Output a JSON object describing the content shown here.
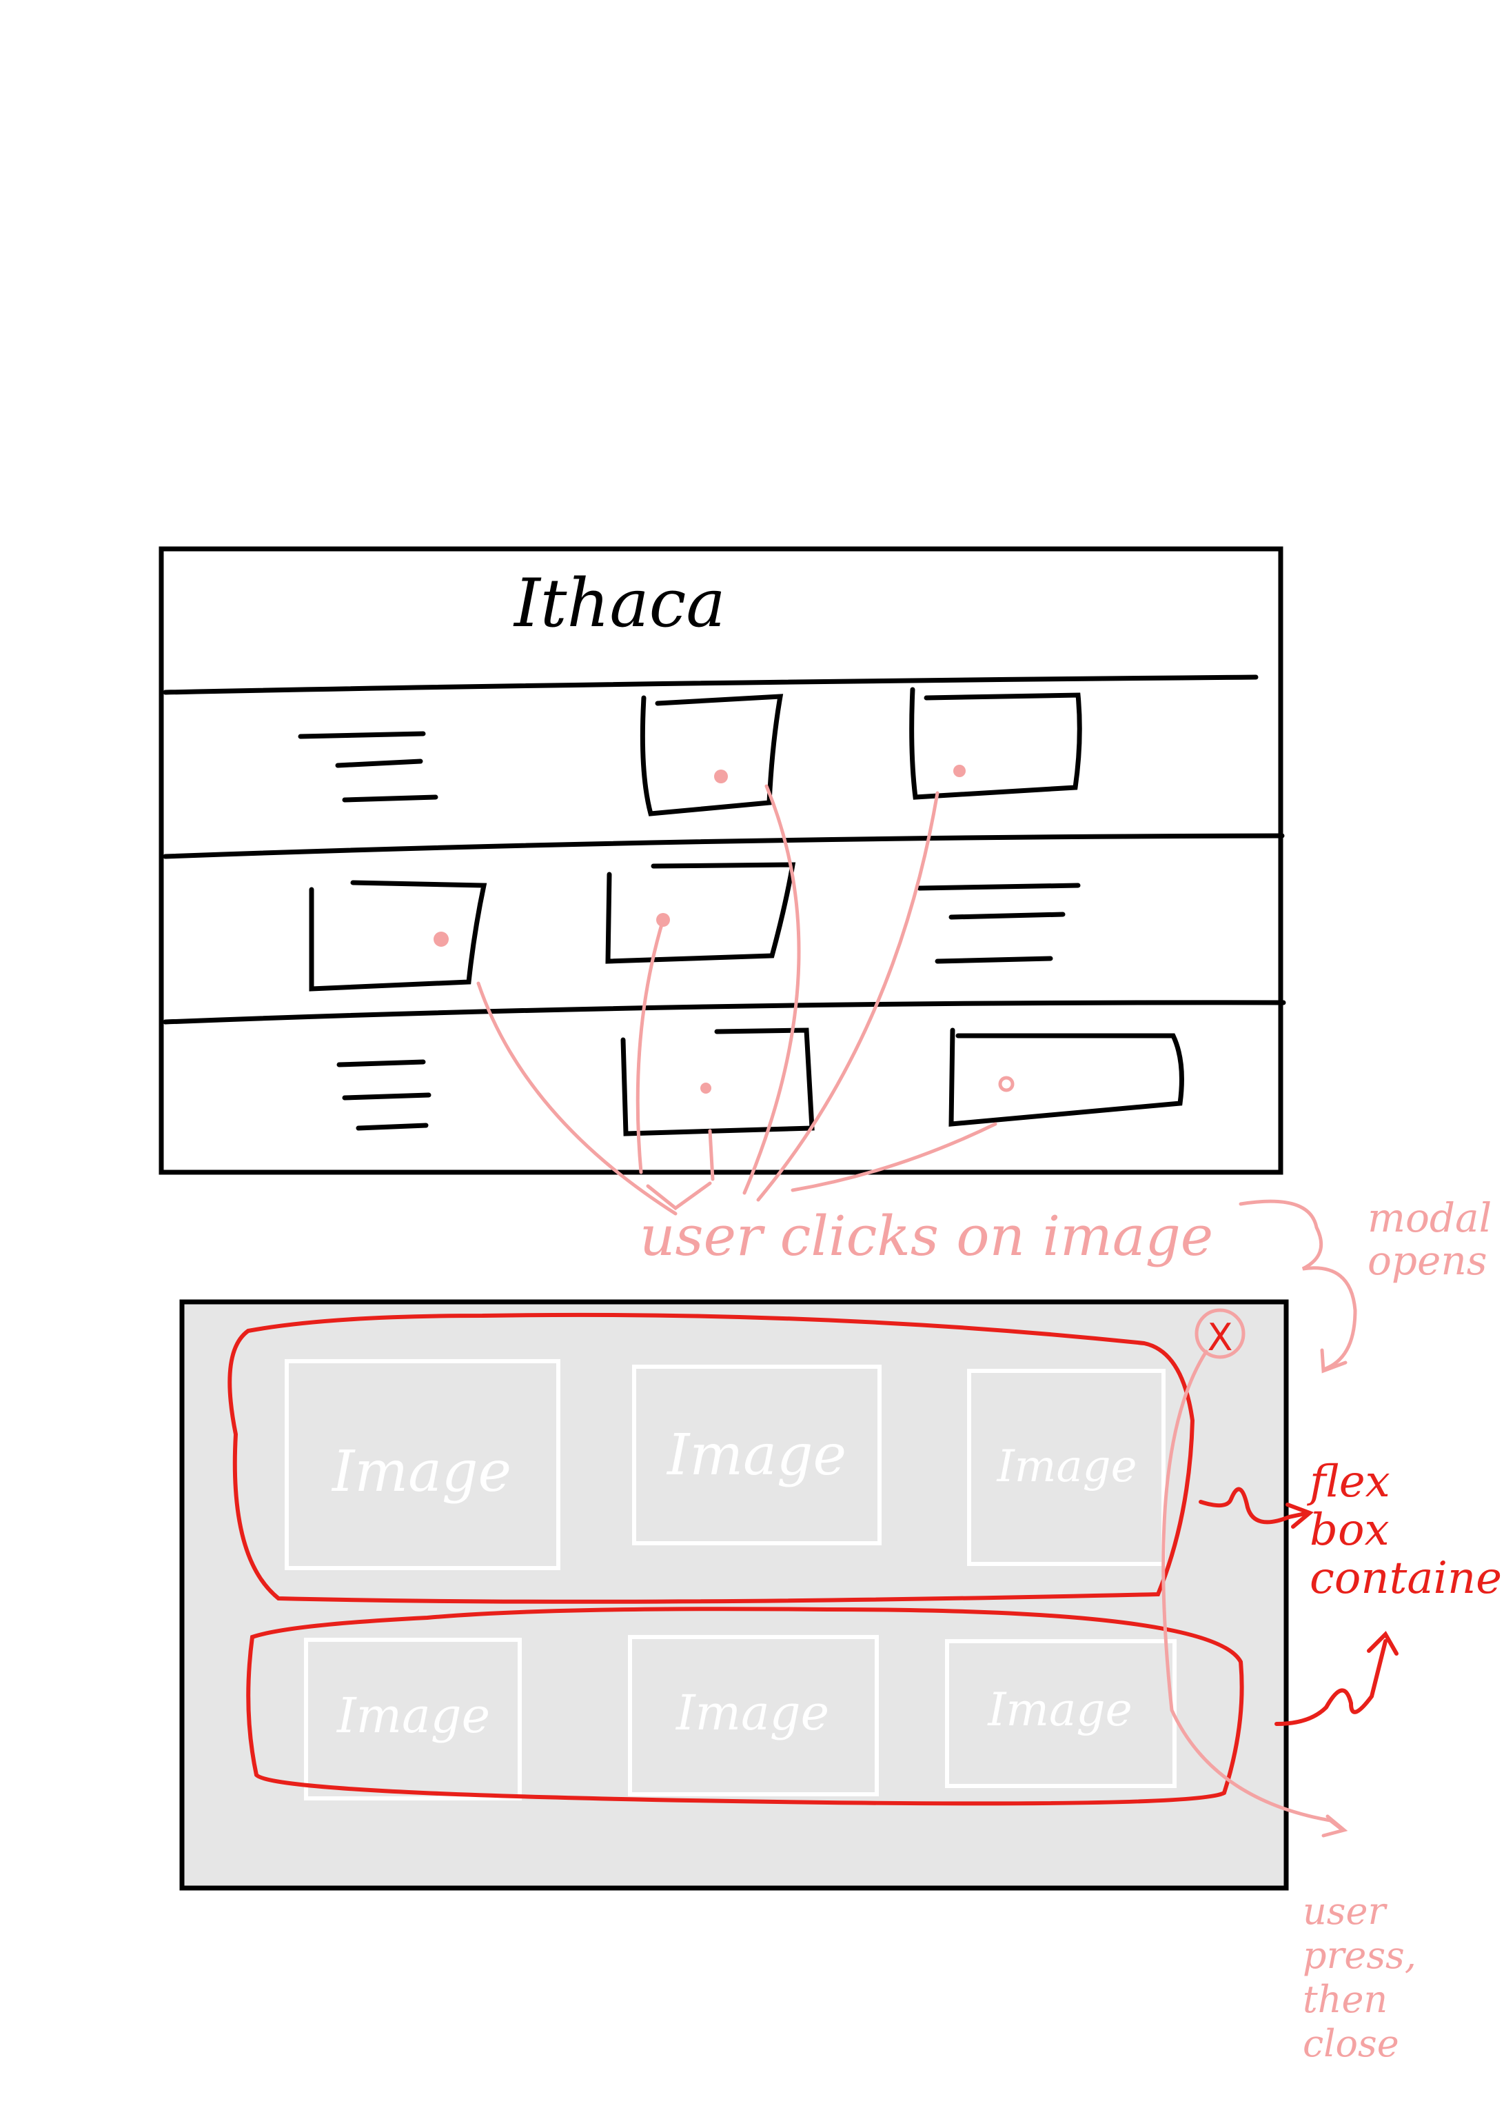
{
  "page": {
    "title": "Ithaca"
  },
  "gallery_modal": {
    "close_label": "X",
    "tiles": [
      {
        "label": "Image"
      },
      {
        "label": "Image"
      },
      {
        "label": "Image"
      },
      {
        "label": "Image"
      },
      {
        "label": "Image"
      },
      {
        "label": "Image"
      }
    ]
  },
  "annotations": {
    "user_clicks": "user clicks on image",
    "modal_opens": "modal opens",
    "flex_box": "flex box container",
    "user_close": "user press, then close"
  },
  "colors": {
    "ink": "#000000",
    "pink": "#f4a3a3",
    "red": "#e8201a",
    "modal_bg": "#e6e6e6",
    "tile_border": "#ffffff",
    "tile_text": "#ffffff"
  }
}
